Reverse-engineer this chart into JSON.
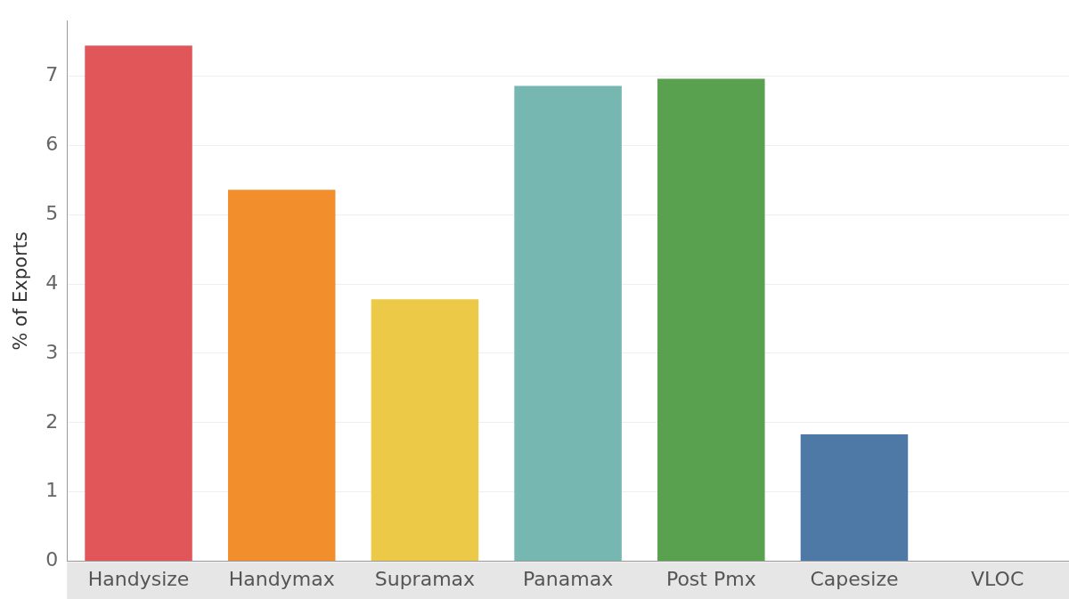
{
  "chart_data": {
    "type": "bar",
    "ylabel": "% of Exports",
    "categories": [
      "Handysize",
      "Handymax",
      "Supramax",
      "Panamax",
      "Post Pmx",
      "Capesize",
      "VLOC"
    ],
    "values": [
      7.44,
      5.36,
      3.78,
      6.86,
      6.96,
      1.83,
      0
    ],
    "colors": [
      "#e15759",
      "#f28e2b",
      "#edc948",
      "#76b7b2",
      "#59a14f",
      "#4e79a7",
      "#bab0ac"
    ],
    "ylim": [
      0,
      7.8
    ],
    "yticks": [
      0,
      1,
      2,
      3,
      4,
      5,
      6,
      7
    ],
    "grid": "y",
    "legend": false
  }
}
